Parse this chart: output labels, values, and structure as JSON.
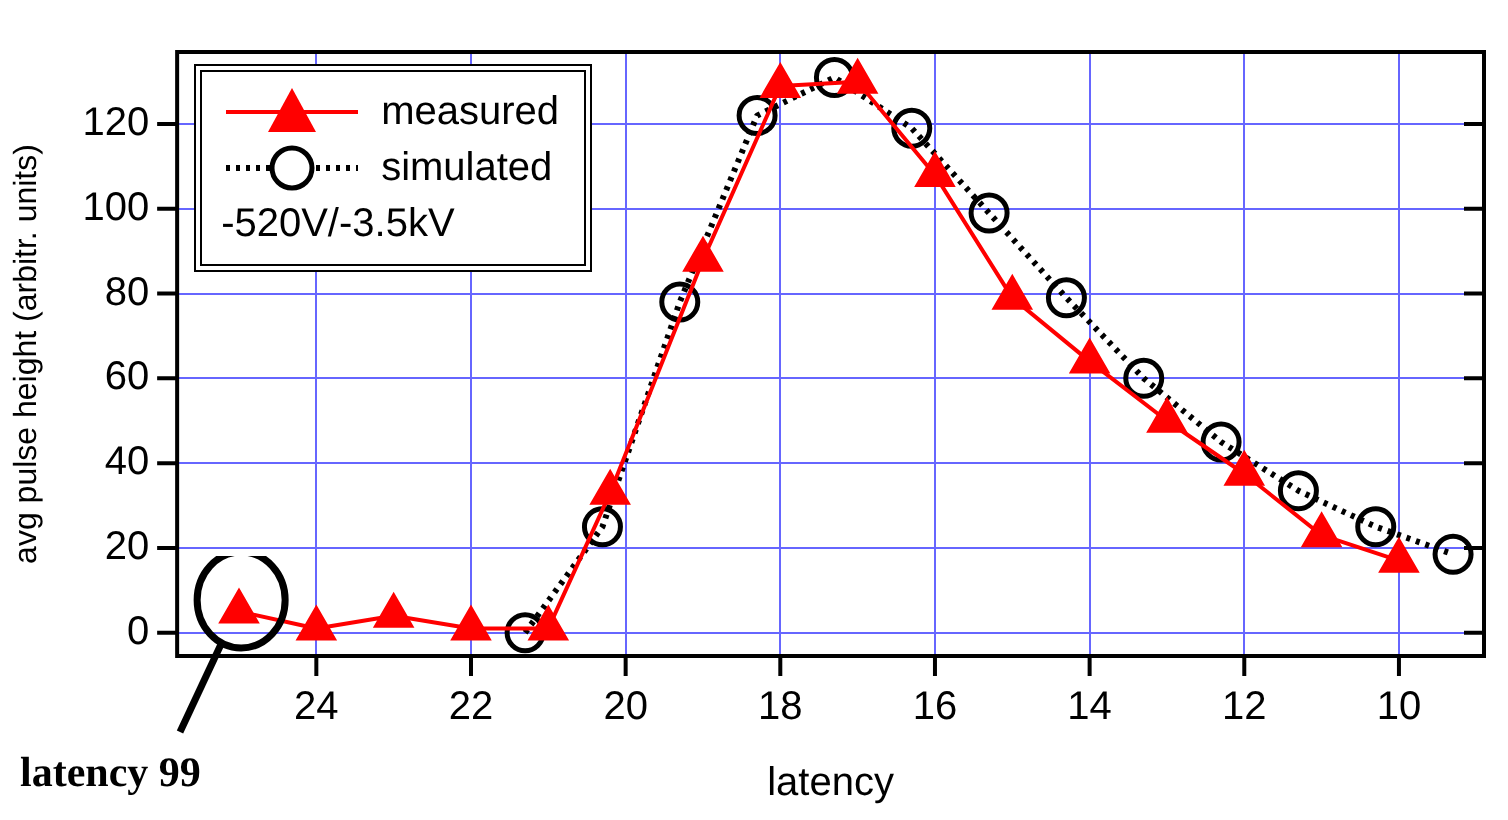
{
  "chart_data": {
    "type": "line",
    "xlabel": "latency",
    "ylabel": "avg pulse height (arbitr. units)",
    "legend_title": "-520V/-3.5kV",
    "legend": "top left",
    "grid": true,
    "xlim": [
      25.8,
      8.9
    ],
    "xticks": [
      24,
      22,
      20,
      18,
      16,
      14,
      12,
      10
    ],
    "ylim": [
      -5.5,
      137
    ],
    "yticks": [
      0,
      20,
      40,
      60,
      80,
      100,
      120
    ],
    "series": [
      {
        "name": "measured",
        "color": "#ff0000",
        "marker": "triangle",
        "line_style": "solid",
        "x": [
          25,
          24,
          23,
          22,
          21,
          20.2,
          19,
          18,
          17,
          16,
          15,
          14,
          13,
          12,
          11,
          10
        ],
        "values": [
          5,
          1,
          4,
          1,
          1,
          33,
          88,
          129,
          130,
          108,
          79,
          64,
          50,
          37.5,
          23,
          17
        ]
      },
      {
        "name": "simulated",
        "color": "#000000",
        "marker": "circle",
        "line_style": "dotted",
        "x": [
          21.3,
          20.3,
          19.3,
          18.3,
          17.3,
          16.3,
          15.3,
          14.3,
          13.3,
          12.3,
          11.3,
          10.3,
          9.3
        ],
        "values": [
          0,
          25,
          78,
          122,
          131,
          119,
          99,
          79,
          60,
          45,
          33.5,
          25,
          18.5
        ]
      }
    ],
    "annotations": [
      "latency 99"
    ]
  }
}
